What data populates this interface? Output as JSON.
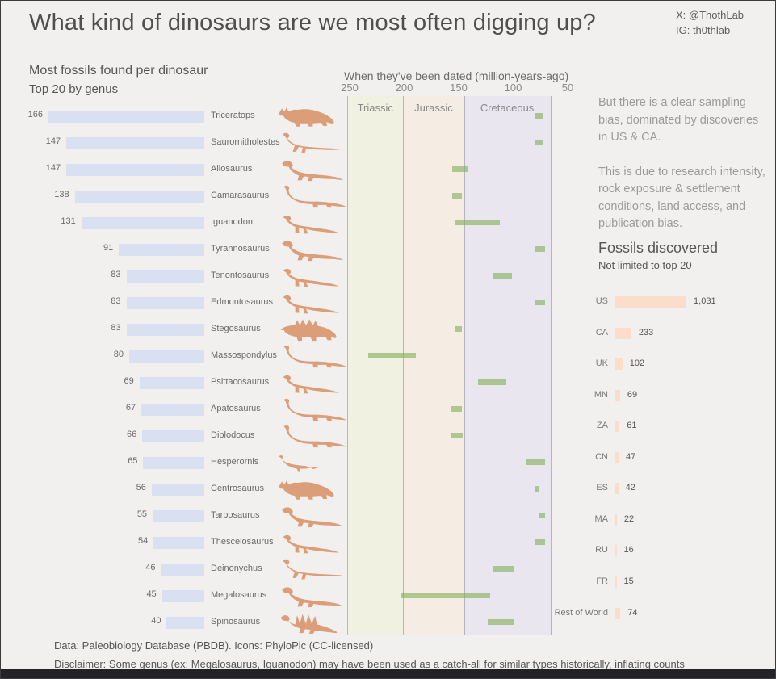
{
  "header": {
    "title": "What kind of dinosaurs are we most often digging up?",
    "social": {
      "x": "X: @ThothLab",
      "ig": "IG: th0thlab"
    }
  },
  "left_chart": {
    "title": "Most fossils found per dinosaur",
    "subtitle": "Top 20 by genus"
  },
  "timeline": {
    "title": "When they've been dated (million-years-ago)"
  },
  "right_panel": {
    "paragraph1_lines": [
      "But there is a clear sampling",
      "bias, dominated by discoveries",
      "in US & CA."
    ],
    "paragraph2_lines": [
      "This is due to research intensity,",
      "rock exposure & settlement",
      "conditions, land access, and",
      "publication bias."
    ]
  },
  "right_chart": {
    "title": "Fossils discovered",
    "subtitle": "Not limited to top 20"
  },
  "footer": {
    "credits": "Data: Paleobiology Database (PBDB). Icons: PhyloPic (CC-licensed)",
    "disclaimer": "Disclaimer: Some genus (ex: Megalosaurus, Iguanodon) may have been used as a catch-all for similar types historically, inflating counts"
  },
  "colors": {
    "background": "#f1f0ee",
    "genus_bar": "#d9e0f2",
    "dino_icon": "#dc9e78",
    "range_bar_rgba": "rgba(129,173,85,0.6)",
    "country_bar": "#fbdeca",
    "band_border": "#b9b3bf",
    "axis_line": "#c8c4cc",
    "triassic_band": "#f1f1e1",
    "jurassic_band": "#f5ece4",
    "cretaceous_band": "#e9e6f0"
  },
  "chart_data": [
    {
      "type": "bar",
      "orientation": "horizontal",
      "title": "Most fossils found per dinosaur",
      "subtitle": "Top 20 by genus",
      "categories": [
        "Triceratops",
        "Saurornitholestes",
        "Allosaurus",
        "Camarasaurus",
        "Iguanodon",
        "Tyrannosaurus",
        "Tenontosaurus",
        "Edmontosaurus",
        "Stegosaurus",
        "Massospondylus",
        "Psittacosaurus",
        "Apatosaurus",
        "Diplodocus",
        "Hesperornis",
        "Centrosaurus",
        "Tarbosaurus",
        "Thescelosaurus",
        "Deinonychus",
        "Megalosaurus",
        "Spinosaurus"
      ],
      "values": [
        166,
        147,
        147,
        138,
        131,
        91,
        83,
        83,
        83,
        80,
        69,
        67,
        66,
        65,
        56,
        55,
        54,
        46,
        45,
        40
      ],
      "icons": [
        "ceratopsian",
        "raptor",
        "theropod",
        "sauropod",
        "ornithopod",
        "theropod",
        "ornithopod",
        "ornithopod",
        "stegosaur",
        "sauropod",
        "ornithopod",
        "sauropod",
        "sauropod",
        "bird",
        "ceratopsian",
        "theropod",
        "ornithopod",
        "raptor",
        "theropod",
        "spinosaur"
      ],
      "xlim": [
        0,
        170
      ]
    },
    {
      "type": "bar",
      "variant": "date-range-timeline",
      "title": "When they've been dated (million-years-ago)",
      "x_unit": "million-years-ago",
      "x_ticks": [
        250,
        200,
        150,
        100,
        50
      ],
      "x_reversed": true,
      "aligned_with": "chart_data[0].categories",
      "ranges": [
        [
          80,
          72
        ],
        [
          80,
          72
        ],
        [
          156,
          141
        ],
        [
          156,
          147
        ],
        [
          154,
          112
        ],
        [
          80,
          71
        ],
        [
          119,
          101
        ],
        [
          80,
          71
        ],
        [
          153,
          147
        ],
        [
          233,
          189
        ],
        [
          132,
          106
        ],
        [
          157,
          147
        ],
        [
          157,
          146
        ],
        [
          88,
          71
        ],
        [
          80,
          77
        ],
        [
          77,
          71
        ],
        [
          80,
          71
        ],
        [
          118,
          99
        ],
        [
          203,
          121
        ],
        [
          123,
          99
        ]
      ],
      "periods": [
        {
          "name": "Triassic",
          "from": 252,
          "to": 201
        },
        {
          "name": "Jurassic",
          "from": 201,
          "to": 145
        },
        {
          "name": "Cretaceous",
          "from": 145,
          "to": 66
        }
      ]
    },
    {
      "type": "bar",
      "orientation": "horizontal",
      "title": "Fossils discovered",
      "subtitle": "Not limited to top 20",
      "categories": [
        "US",
        "CA",
        "UK",
        "MN",
        "ZA",
        "CN",
        "ES",
        "MA",
        "RU",
        "FR",
        "Rest of World"
      ],
      "values": [
        1031,
        233,
        102,
        69,
        61,
        47,
        42,
        22,
        16,
        15,
        74
      ],
      "value_labels": [
        "1,031",
        "233",
        "102",
        "69",
        "61",
        "47",
        "42",
        "22",
        "16",
        "15",
        "74"
      ],
      "xlim": [
        0,
        1100
      ]
    }
  ]
}
